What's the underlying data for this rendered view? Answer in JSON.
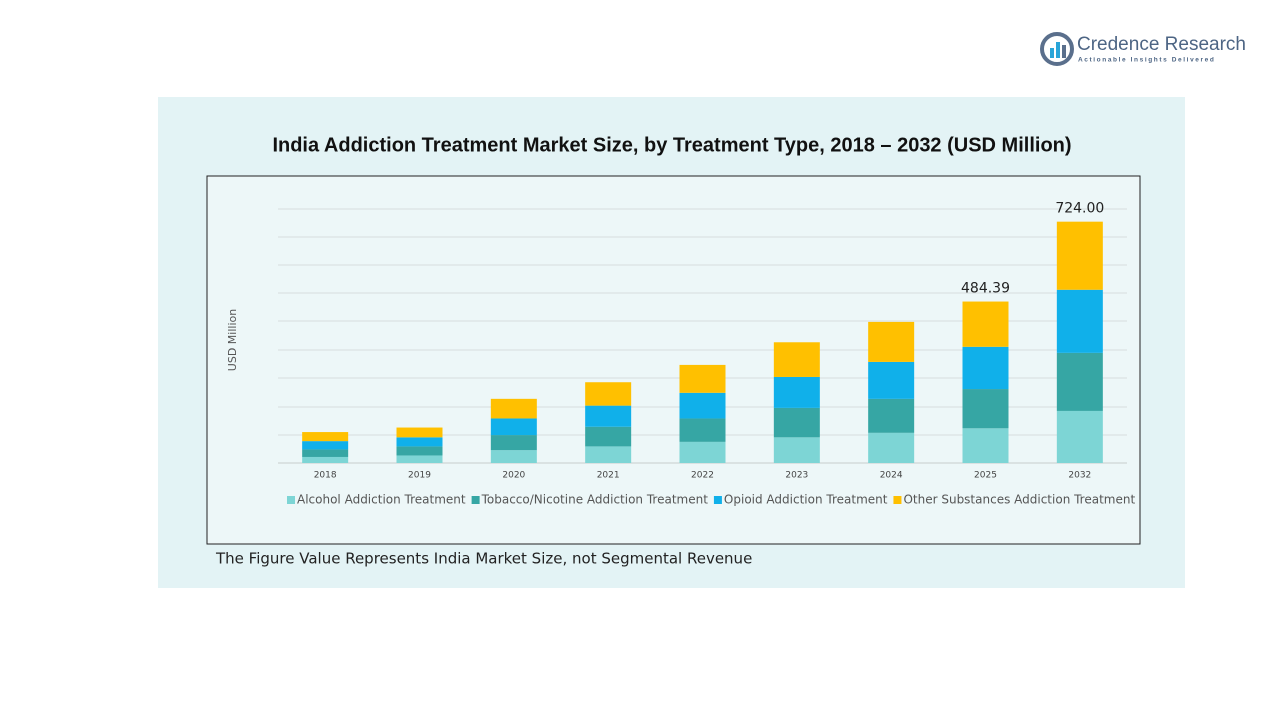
{
  "brand": {
    "name": "Credence Research",
    "tagline": "Actionable Insights Delivered"
  },
  "chart_data": {
    "type": "stacked_bar",
    "title": "India Addiction Treatment Market Size, by Treatment Type, 2018 – 2032 (USD Million)",
    "y_label": "USD Million",
    "categories": [
      "2018",
      "2019",
      "2020",
      "2021",
      "2022",
      "2023",
      "2024",
      "2025",
      "2032"
    ],
    "ylim": [
      0,
      750
    ],
    "series": [
      {
        "name": "Alcohol Addiction Treatment",
        "color": "#7dd5d5",
        "values": [
          18.1,
          22.6,
          38.5,
          49.8,
          63.4,
          77.0,
          90.5,
          104.12,
          156.2
        ]
      },
      {
        "name": "Tobacco/Nicotine Addiction Treatment",
        "color": "#36a6a4",
        "values": [
          22.6,
          27.2,
          45.3,
          58.9,
          70.2,
          88.3,
          101.9,
          117.7,
          174.2
        ]
      },
      {
        "name": "Opioid Addiction Treatment",
        "color": "#10b0ea",
        "values": [
          24.9,
          27.2,
          49.8,
          63.4,
          77.0,
          92.8,
          110.9,
          126.76,
          189.3
        ]
      },
      {
        "name": "Other Substances Addiction Treatment",
        "color": "#ffc000",
        "values": [
          27.2,
          29.4,
          58.9,
          70.2,
          83.7,
          104.1,
          120.0,
          135.81,
          204.3
        ]
      }
    ],
    "total_labels": [
      {
        "category": "2025",
        "value": 484.39
      },
      {
        "category": "2032",
        "value": 724,
        "label": "724.00"
      }
    ],
    "footnote": "The Figure Value Represents India Market Size, not Segmental Revenue"
  }
}
